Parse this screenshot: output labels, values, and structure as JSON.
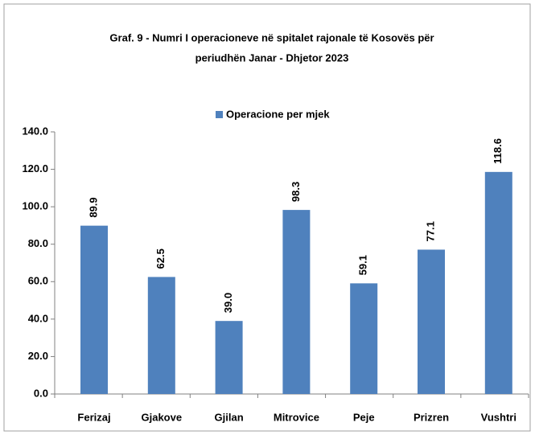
{
  "chart_data": {
    "type": "bar",
    "title": "Graf. 9 - Numri I operacioneve në spitalet rajonale të Kosovës për",
    "subtitle": "periudhën Janar  - Dhjetor 2023",
    "categories": [
      "Ferizaj",
      "Gjakove",
      "Gjilan",
      "Mitrovice",
      "Peje",
      "Prizren",
      "Vushtri"
    ],
    "series": [
      {
        "name": "Operacione per mjek",
        "color": "#4f81bd",
        "values": [
          89.9,
          62.5,
          39.0,
          98.3,
          59.1,
          77.1,
          118.6
        ],
        "value_labels": [
          "89.9",
          "62.5",
          "39.0",
          "98.3",
          "59.1",
          "77.1",
          "118.6"
        ]
      }
    ],
    "ylim": [
      0,
      140
    ],
    "yticks": [
      {
        "value": 0,
        "label": "0.0"
      },
      {
        "value": 20,
        "label": "20.0"
      },
      {
        "value": 40,
        "label": "40.0"
      },
      {
        "value": 60,
        "label": "60.0"
      },
      {
        "value": 80,
        "label": "80.0"
      },
      {
        "value": 100,
        "label": "100.0"
      },
      {
        "value": 120,
        "label": "120.0"
      },
      {
        "value": 140,
        "label": "140.0"
      }
    ],
    "grid": false,
    "legend": "top"
  }
}
